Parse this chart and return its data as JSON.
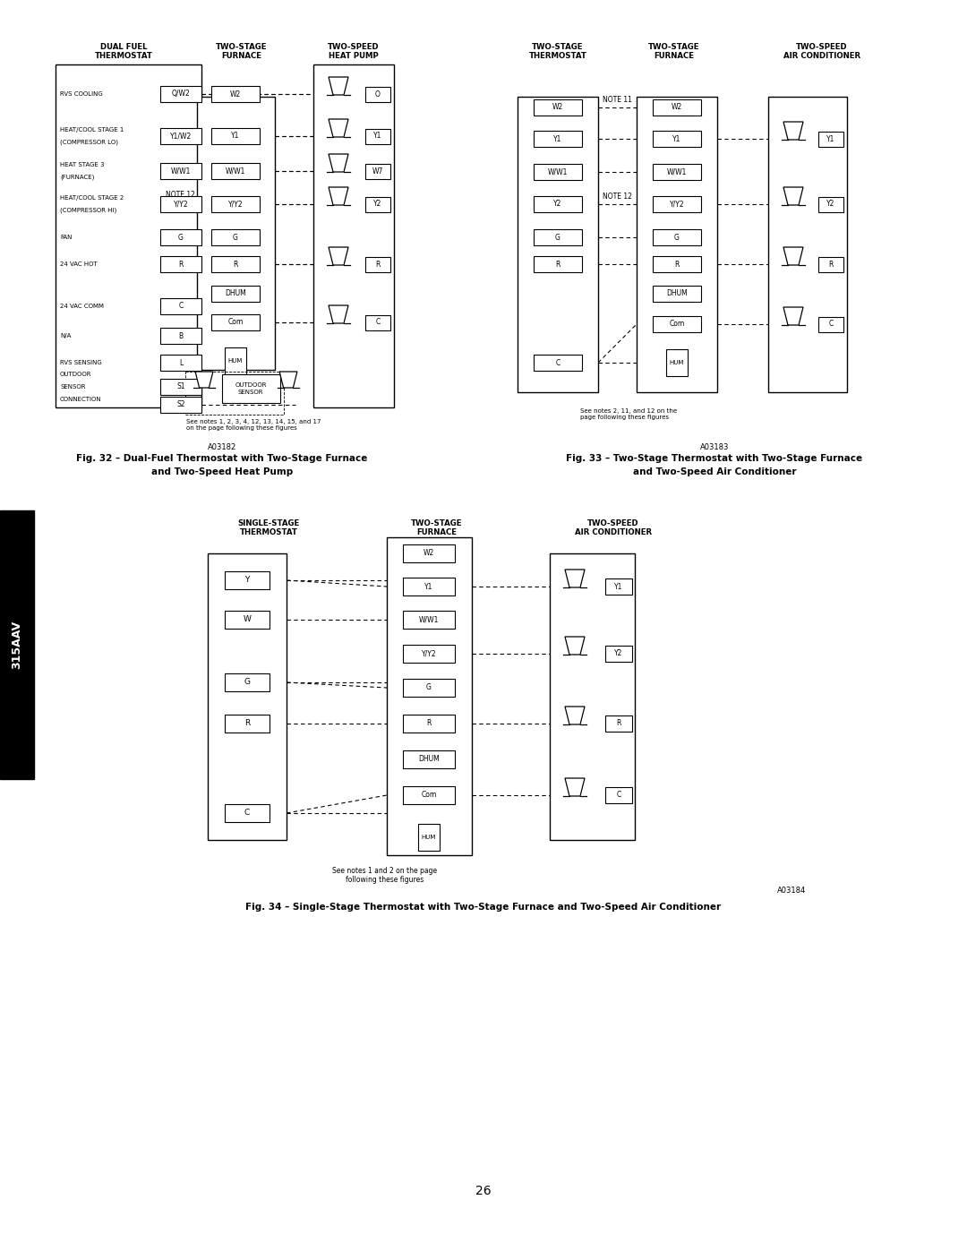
{
  "page_bg": "#ffffff",
  "sidebar_label": "315AAV",
  "page_number": "26",
  "fig32_title_line1": "Fig. 32 – Dual-Fuel Thermostat with Two-Stage Furnace",
  "fig32_title_line2": "and Two-Speed Heat Pump",
  "fig32_code": "A03182",
  "fig32_col1_header": "DUAL FUEL\nTHERMOSTAT",
  "fig32_col2_header": "TWO-STAGE\nFURNACE",
  "fig32_col3_header": "TWO-SPEED\nHEAT PUMP",
  "fig32_note_text": "See notes 1, 2, 3, 4, 12, 13, 14, 15, and 17\non the page following these figures",
  "fig33_title_line1": "Fig. 33 – Two-Stage Thermostat with Two-Stage Furnace",
  "fig33_title_line2": "and Two-Speed Air Conditioner",
  "fig33_code": "A03183",
  "fig33_col1_header": "TWO-STAGE\nTHERMOSTAT",
  "fig33_col2_header": "TWO-STAGE\nFURNACE",
  "fig33_col3_header": "TWO-SPEED\nAIR CONDITIONER",
  "fig33_note_text": "See notes 2, 11, and 12 on the\npage following these figures",
  "fig34_title": "Fig. 34 – Single-Stage Thermostat with Two-Stage Furnace and Two-Speed Air Conditioner",
  "fig34_code": "A03184",
  "fig34_col1_header": "SINGLE-STAGE\nTHERMOSTAT",
  "fig34_col2_header": "TWO-STAGE\nFURNACE",
  "fig34_col3_header": "TWO-SPEED\nAIR CONDITIONER",
  "fig34_note_text": "See notes 1 and 2 on the page\nfollowing these figures"
}
